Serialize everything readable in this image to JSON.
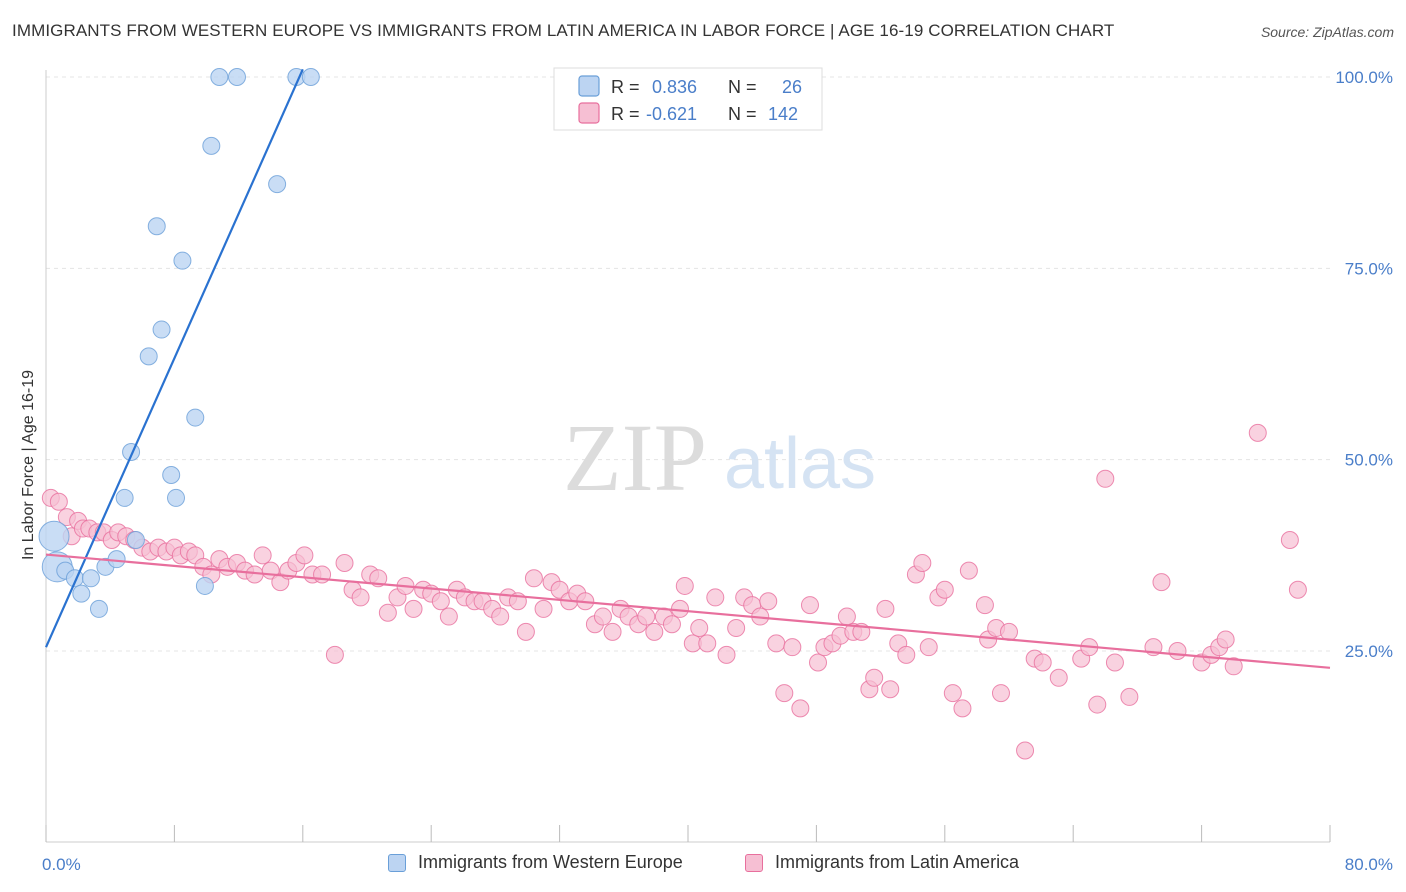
{
  "title": "IMMIGRANTS FROM WESTERN EUROPE VS IMMIGRANTS FROM LATIN AMERICA IN LABOR FORCE | AGE 16-19 CORRELATION CHART",
  "source": "Source: ZipAtlas.com",
  "watermark": {
    "zip": "ZIP",
    "atlas": "atlas"
  },
  "chart_data": {
    "type": "scatter",
    "title": "IMMIGRANTS FROM WESTERN EUROPE VS IMMIGRANTS FROM LATIN AMERICA IN LABOR FORCE | AGE 16-19 CORRELATION CHART",
    "xlabel": "",
    "ylabel": "In Labor Force | Age 16-19",
    "xlim": [
      0,
      80
    ],
    "ylim": [
      0,
      104
    ],
    "x_tick_labels": [
      {
        "value": 0,
        "label": "0.0%"
      },
      {
        "value": 80,
        "label": "80.0%"
      }
    ],
    "y_tick_labels": [
      {
        "value": 25,
        "label": "25.0%"
      },
      {
        "value": 50,
        "label": "50.0%"
      },
      {
        "value": 75,
        "label": "75.0%"
      },
      {
        "value": 100,
        "label": "100.0%"
      }
    ],
    "grid": true,
    "legend_position": "top-center",
    "series": [
      {
        "name": "Immigrants from Western Europe",
        "color": "#6a9fd8",
        "fill": "#bcd4f2",
        "R": "0.836",
        "N": "26",
        "trend": {
          "x": [
            0,
            16
          ],
          "y": [
            25.5,
            101
          ]
        },
        "points": [
          {
            "x": 0.5,
            "y": 40,
            "big": true
          },
          {
            "x": 0.7,
            "y": 36,
            "big": true
          },
          {
            "x": 1.2,
            "y": 35.5
          },
          {
            "x": 1.8,
            "y": 34.5
          },
          {
            "x": 2.2,
            "y": 32.5
          },
          {
            "x": 2.8,
            "y": 34.5
          },
          {
            "x": 3.3,
            "y": 30.5
          },
          {
            "x": 3.7,
            "y": 36
          },
          {
            "x": 4.4,
            "y": 37
          },
          {
            "x": 4.9,
            "y": 45
          },
          {
            "x": 5.3,
            "y": 51
          },
          {
            "x": 5.6,
            "y": 39.5
          },
          {
            "x": 6.4,
            "y": 63.5
          },
          {
            "x": 6.9,
            "y": 80.5
          },
          {
            "x": 7.2,
            "y": 67
          },
          {
            "x": 7.8,
            "y": 48
          },
          {
            "x": 8.1,
            "y": 45
          },
          {
            "x": 8.5,
            "y": 76
          },
          {
            "x": 9.3,
            "y": 55.5
          },
          {
            "x": 9.9,
            "y": 33.5
          },
          {
            "x": 10.3,
            "y": 91
          },
          {
            "x": 10.8,
            "y": 100
          },
          {
            "x": 11.9,
            "y": 100
          },
          {
            "x": 14.4,
            "y": 86
          },
          {
            "x": 15.6,
            "y": 100
          },
          {
            "x": 16.5,
            "y": 100
          }
        ]
      },
      {
        "name": "Immigrants from Latin America",
        "color": "#e86f9d",
        "fill": "#f6bfd3",
        "R": "-0.621",
        "N": "142",
        "trend": {
          "x": [
            0,
            80
          ],
          "y": [
            37.6,
            22.8
          ]
        },
        "points": [
          {
            "x": 0.3,
            "y": 45
          },
          {
            "x": 0.8,
            "y": 44.5
          },
          {
            "x": 1.3,
            "y": 42.5
          },
          {
            "x": 1.6,
            "y": 40
          },
          {
            "x": 2.0,
            "y": 42
          },
          {
            "x": 2.3,
            "y": 41
          },
          {
            "x": 2.7,
            "y": 41
          },
          {
            "x": 3.2,
            "y": 40.5
          },
          {
            "x": 3.6,
            "y": 40.5
          },
          {
            "x": 4.1,
            "y": 39.5
          },
          {
            "x": 4.5,
            "y": 40.5
          },
          {
            "x": 5.0,
            "y": 40
          },
          {
            "x": 5.5,
            "y": 39.5
          },
          {
            "x": 6.0,
            "y": 38.5
          },
          {
            "x": 6.5,
            "y": 38
          },
          {
            "x": 7.0,
            "y": 38.5
          },
          {
            "x": 7.5,
            "y": 38
          },
          {
            "x": 8.0,
            "y": 38.5
          },
          {
            "x": 8.4,
            "y": 37.5
          },
          {
            "x": 8.9,
            "y": 38
          },
          {
            "x": 9.3,
            "y": 37.5
          },
          {
            "x": 9.8,
            "y": 36
          },
          {
            "x": 10.3,
            "y": 35
          },
          {
            "x": 10.8,
            "y": 37
          },
          {
            "x": 11.3,
            "y": 36
          },
          {
            "x": 11.9,
            "y": 36.5
          },
          {
            "x": 12.4,
            "y": 35.5
          },
          {
            "x": 13.0,
            "y": 35
          },
          {
            "x": 13.5,
            "y": 37.5
          },
          {
            "x": 14.0,
            "y": 35.5
          },
          {
            "x": 14.6,
            "y": 34
          },
          {
            "x": 15.1,
            "y": 35.5
          },
          {
            "x": 15.6,
            "y": 36.5
          },
          {
            "x": 16.1,
            "y": 37.5
          },
          {
            "x": 16.6,
            "y": 35
          },
          {
            "x": 17.2,
            "y": 35
          },
          {
            "x": 18.0,
            "y": 24.5
          },
          {
            "x": 18.6,
            "y": 36.5
          },
          {
            "x": 19.1,
            "y": 33
          },
          {
            "x": 19.6,
            "y": 32
          },
          {
            "x": 20.2,
            "y": 35
          },
          {
            "x": 20.7,
            "y": 34.5
          },
          {
            "x": 21.3,
            "y": 30
          },
          {
            "x": 21.9,
            "y": 32
          },
          {
            "x": 22.4,
            "y": 33.5
          },
          {
            "x": 22.9,
            "y": 30.5
          },
          {
            "x": 23.5,
            "y": 33
          },
          {
            "x": 24.0,
            "y": 32.5
          },
          {
            "x": 24.6,
            "y": 31.5
          },
          {
            "x": 25.1,
            "y": 29.5
          },
          {
            "x": 25.6,
            "y": 33
          },
          {
            "x": 26.1,
            "y": 32
          },
          {
            "x": 26.7,
            "y": 31.5
          },
          {
            "x": 27.2,
            "y": 31.5
          },
          {
            "x": 27.8,
            "y": 30.5
          },
          {
            "x": 28.3,
            "y": 29.5
          },
          {
            "x": 28.8,
            "y": 32
          },
          {
            "x": 29.4,
            "y": 31.5
          },
          {
            "x": 29.9,
            "y": 27.5
          },
          {
            "x": 30.4,
            "y": 34.5
          },
          {
            "x": 31.0,
            "y": 30.5
          },
          {
            "x": 31.5,
            "y": 34
          },
          {
            "x": 32.0,
            "y": 33
          },
          {
            "x": 32.6,
            "y": 31.5
          },
          {
            "x": 33.1,
            "y": 32.5
          },
          {
            "x": 33.6,
            "y": 31.5
          },
          {
            "x": 34.2,
            "y": 28.5
          },
          {
            "x": 34.7,
            "y": 29.5
          },
          {
            "x": 35.3,
            "y": 27.5
          },
          {
            "x": 35.8,
            "y": 30.5
          },
          {
            "x": 36.3,
            "y": 29.5
          },
          {
            "x": 36.9,
            "y": 28.5
          },
          {
            "x": 37.4,
            "y": 29.5
          },
          {
            "x": 37.9,
            "y": 27.5
          },
          {
            "x": 38.5,
            "y": 29.5
          },
          {
            "x": 39.0,
            "y": 28.5
          },
          {
            "x": 39.5,
            "y": 30.5
          },
          {
            "x": 39.8,
            "y": 33.5
          },
          {
            "x": 40.3,
            "y": 26
          },
          {
            "x": 40.7,
            "y": 28
          },
          {
            "x": 41.2,
            "y": 26
          },
          {
            "x": 41.7,
            "y": 32
          },
          {
            "x": 42.4,
            "y": 24.5
          },
          {
            "x": 43.0,
            "y": 28
          },
          {
            "x": 43.5,
            "y": 32
          },
          {
            "x": 44.0,
            "y": 31
          },
          {
            "x": 44.5,
            "y": 29.5
          },
          {
            "x": 45.0,
            "y": 31.5
          },
          {
            "x": 45.5,
            "y": 26
          },
          {
            "x": 46.0,
            "y": 19.5
          },
          {
            "x": 46.5,
            "y": 25.5
          },
          {
            "x": 47.0,
            "y": 17.5
          },
          {
            "x": 47.6,
            "y": 31
          },
          {
            "x": 48.1,
            "y": 23.5
          },
          {
            "x": 48.5,
            "y": 25.5
          },
          {
            "x": 49.0,
            "y": 26
          },
          {
            "x": 49.5,
            "y": 27
          },
          {
            "x": 49.9,
            "y": 29.5
          },
          {
            "x": 50.3,
            "y": 27.5
          },
          {
            "x": 50.8,
            "y": 27.5
          },
          {
            "x": 51.3,
            "y": 20
          },
          {
            "x": 51.6,
            "y": 21.5
          },
          {
            "x": 52.3,
            "y": 30.5
          },
          {
            "x": 52.6,
            "y": 20
          },
          {
            "x": 53.1,
            "y": 26
          },
          {
            "x": 53.6,
            "y": 24.5
          },
          {
            "x": 54.2,
            "y": 35
          },
          {
            "x": 54.6,
            "y": 36.5
          },
          {
            "x": 55.0,
            "y": 25.5
          },
          {
            "x": 55.6,
            "y": 32
          },
          {
            "x": 56.0,
            "y": 33
          },
          {
            "x": 56.5,
            "y": 19.5
          },
          {
            "x": 57.1,
            "y": 17.5
          },
          {
            "x": 57.5,
            "y": 35.5
          },
          {
            "x": 58.5,
            "y": 31
          },
          {
            "x": 58.7,
            "y": 26.5
          },
          {
            "x": 59.2,
            "y": 28
          },
          {
            "x": 59.5,
            "y": 19.5
          },
          {
            "x": 60.0,
            "y": 27.5
          },
          {
            "x": 61.0,
            "y": 12
          },
          {
            "x": 61.6,
            "y": 24
          },
          {
            "x": 62.1,
            "y": 23.5
          },
          {
            "x": 63.1,
            "y": 21.5
          },
          {
            "x": 64.5,
            "y": 24
          },
          {
            "x": 65.0,
            "y": 25.5
          },
          {
            "x": 65.5,
            "y": 18
          },
          {
            "x": 66.0,
            "y": 47.5
          },
          {
            "x": 66.6,
            "y": 23.5
          },
          {
            "x": 67.5,
            "y": 19
          },
          {
            "x": 69.0,
            "y": 25.5
          },
          {
            "x": 69.5,
            "y": 34
          },
          {
            "x": 70.5,
            "y": 25
          },
          {
            "x": 72.0,
            "y": 23.5
          },
          {
            "x": 72.6,
            "y": 24.5
          },
          {
            "x": 73.1,
            "y": 25.5
          },
          {
            "x": 73.5,
            "y": 26.5
          },
          {
            "x": 74.0,
            "y": 23
          },
          {
            "x": 75.5,
            "y": 53.5
          },
          {
            "x": 77.5,
            "y": 39.5
          },
          {
            "x": 78.0,
            "y": 33
          }
        ]
      }
    ]
  },
  "legend": {
    "r_label": "R =",
    "n_label": "N =",
    "rows": [
      {
        "r": "0.836",
        "n": "26"
      },
      {
        "r": "-0.621",
        "n": "142"
      }
    ]
  },
  "bottom_legend": [
    {
      "label": "Immigrants from Western Europe",
      "fill": "#bcd4f2",
      "stroke": "#6a9fd8"
    },
    {
      "label": "Immigrants from Latin America",
      "fill": "#f6bfd3",
      "stroke": "#e86f9d"
    }
  ]
}
